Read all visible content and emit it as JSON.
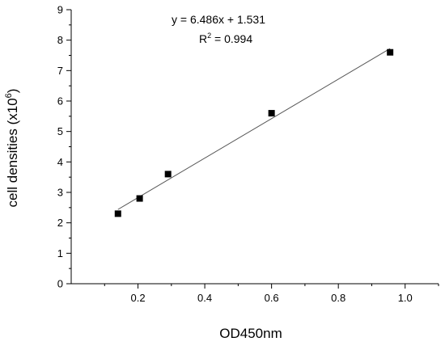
{
  "chart_data": {
    "type": "scatter",
    "title": "",
    "xlabel": "OD450nm",
    "ylabel": "cell densities (x10",
    "ylabel_superscript": "6",
    "ylabel_suffix": ")",
    "xlim": [
      0.0,
      1.1
    ],
    "ylim": [
      0,
      9
    ],
    "x_ticks": [
      0.2,
      0.4,
      0.6,
      0.8,
      1.0
    ],
    "x_tick_labels": [
      "0.2",
      "0.4",
      "0.6",
      "0.8",
      "1.0"
    ],
    "y_ticks": [
      0,
      1,
      2,
      3,
      4,
      5,
      6,
      7,
      8,
      9
    ],
    "y_tick_labels": [
      "0",
      "1",
      "2",
      "3",
      "4",
      "5",
      "6",
      "7",
      "8",
      "9"
    ],
    "grid": false,
    "legend": "none",
    "series": [
      {
        "marker": "square",
        "color": "#000000",
        "points": [
          {
            "x": 0.14,
            "y": 2.3
          },
          {
            "x": 0.205,
            "y": 2.8
          },
          {
            "x": 0.29,
            "y": 3.6
          },
          {
            "x": 0.6,
            "y": 5.6
          },
          {
            "x": 0.955,
            "y": 7.6
          }
        ]
      }
    ],
    "fit": {
      "slope": 6.486,
      "intercept": 1.531,
      "x_range": [
        0.14,
        0.955
      ],
      "color": "#555555"
    },
    "annotation": {
      "equation": "y = 6.486x + 1.531",
      "r2_prefix": "R",
      "r2_superscript": "2",
      "r2_suffix": " = 0.994"
    }
  }
}
